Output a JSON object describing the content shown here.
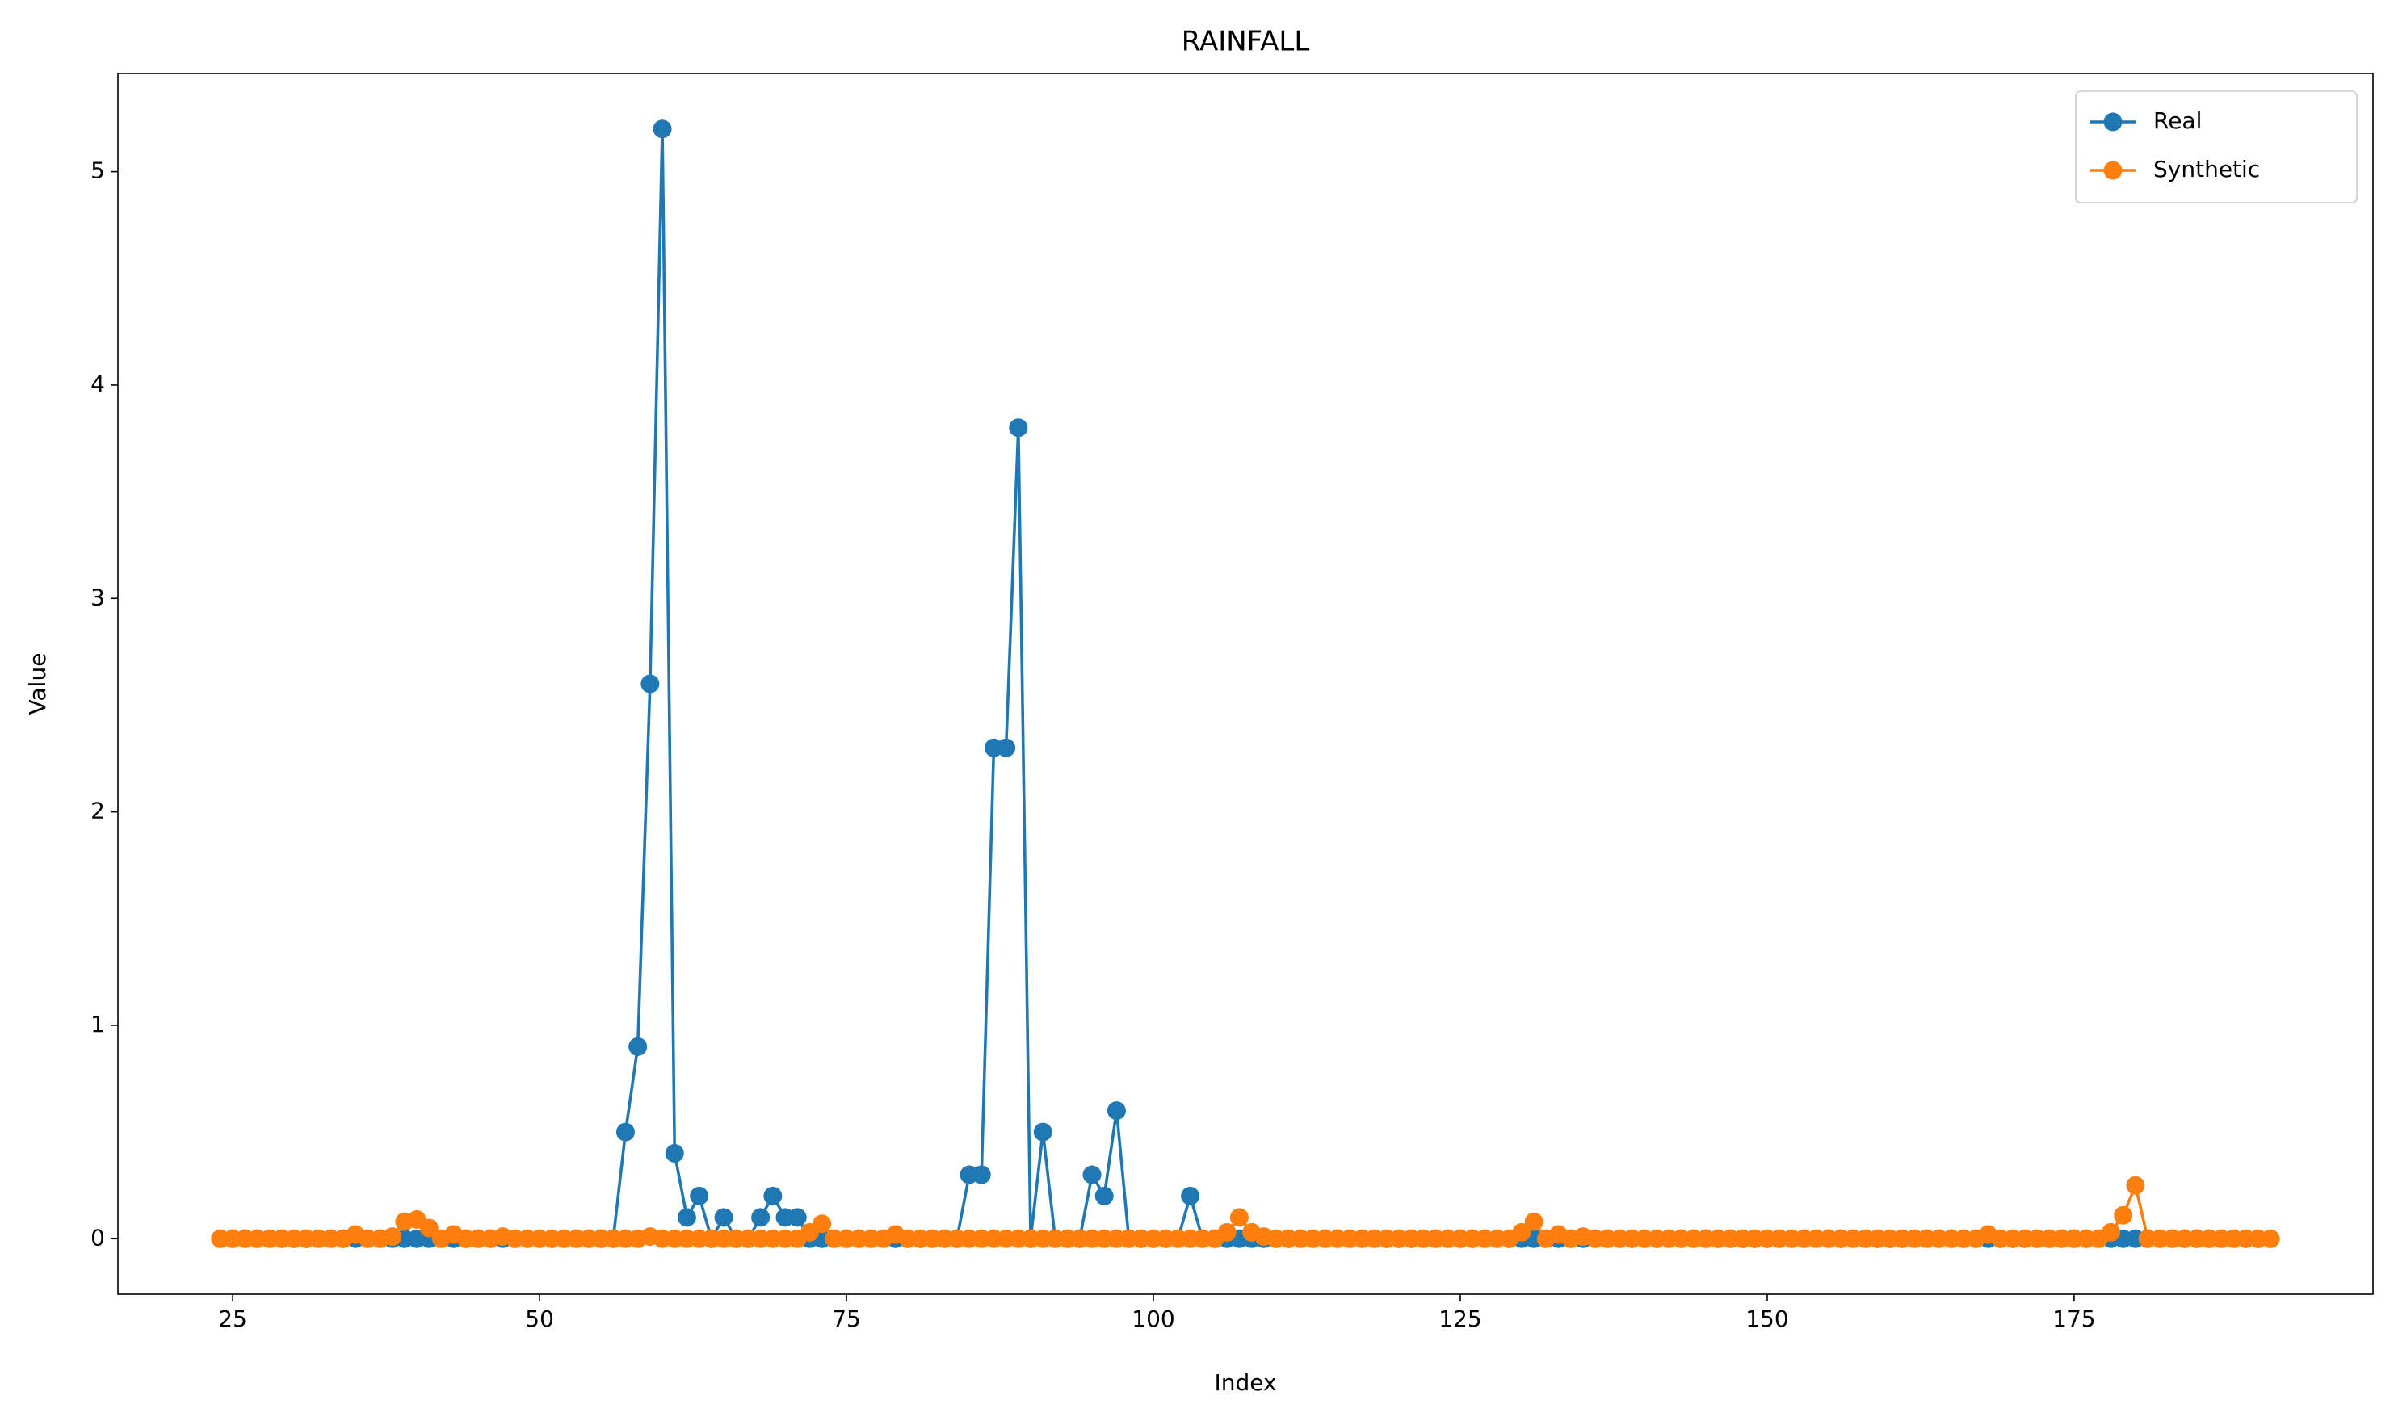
{
  "chart_data": {
    "type": "line",
    "title": "RAINFALL",
    "x_label": "Index",
    "y_label": "Value",
    "x": [
      24,
      25,
      26,
      27,
      28,
      29,
      30,
      31,
      32,
      33,
      34,
      35,
      36,
      37,
      38,
      39,
      40,
      41,
      42,
      43,
      44,
      45,
      46,
      47,
      48,
      49,
      50,
      51,
      52,
      53,
      54,
      55,
      56,
      57,
      58,
      59,
      60,
      61,
      62,
      63,
      64,
      65,
      66,
      67,
      68,
      69,
      70,
      71,
      72,
      73,
      74,
      75,
      76,
      77,
      78,
      79,
      80,
      81,
      82,
      83,
      84,
      85,
      86,
      87,
      88,
      89,
      90,
      91,
      92,
      93,
      94,
      95,
      96,
      97,
      98,
      99,
      100,
      101,
      102,
      103,
      104,
      105,
      106,
      107,
      108,
      109,
      110,
      111,
      112,
      113,
      114,
      115,
      116,
      117,
      118,
      119,
      120,
      121,
      122,
      123,
      124,
      125,
      126,
      127,
      128,
      129,
      130,
      131,
      132,
      133,
      134,
      135,
      136,
      137,
      138,
      139,
      140,
      141,
      142,
      143,
      144,
      145,
      146,
      147,
      148,
      149,
      150,
      151,
      152,
      153,
      154,
      155,
      156,
      157,
      158,
      159,
      160,
      161,
      162,
      163,
      164,
      165,
      166,
      167,
      168,
      169,
      170,
      171,
      172,
      173,
      174,
      175,
      176,
      177,
      178,
      179,
      180,
      181,
      182,
      183,
      184,
      185,
      186,
      187,
      188,
      189,
      190,
      191
    ],
    "series": [
      {
        "name": "Real",
        "color": "#1f77b4",
        "values": [
          0,
          0,
          0,
          0,
          0,
          0,
          0,
          0,
          0,
          0,
          0,
          0,
          0,
          0,
          0,
          0,
          0,
          0,
          0,
          0,
          0,
          0,
          0,
          0,
          0,
          0,
          0,
          0,
          0,
          0,
          0,
          0,
          0,
          0.5,
          0.9,
          2.6,
          5.2,
          0.4,
          0.1,
          0.2,
          0,
          0.1,
          0,
          0,
          0.1,
          0.2,
          0.1,
          0.1,
          0,
          0,
          0,
          0,
          0,
          0,
          0,
          0,
          0,
          0,
          0,
          0,
          0,
          0.3,
          0.3,
          2.3,
          2.3,
          3.8,
          0,
          0.5,
          0,
          0,
          0,
          0.3,
          0.2,
          0.6,
          0,
          0,
          0,
          0,
          0,
          0.2,
          0,
          0,
          0,
          0,
          0,
          0,
          0,
          0,
          0,
          0,
          0,
          0,
          0,
          0,
          0,
          0,
          0,
          0,
          0,
          0,
          0,
          0,
          0,
          0,
          0,
          0,
          0,
          0,
          0,
          0,
          0,
          0,
          0,
          0,
          0,
          0,
          0,
          0,
          0,
          0,
          0,
          0,
          0,
          0,
          0,
          0,
          0,
          0,
          0,
          0,
          0,
          0,
          0,
          0,
          0,
          0,
          0,
          0,
          0,
          0,
          0,
          0,
          0,
          0,
          0,
          0,
          0,
          0,
          0,
          0,
          0,
          0,
          0,
          0,
          0,
          0,
          0,
          0,
          0,
          0,
          0,
          0,
          0,
          0,
          0,
          0,
          0,
          0
        ]
      },
      {
        "name": "Synthetic",
        "color": "#ff7f0e",
        "values": [
          0,
          0,
          0,
          0,
          0,
          0,
          0,
          0,
          0,
          0,
          0,
          0.02,
          0,
          0,
          0.01,
          0.08,
          0.09,
          0.05,
          0,
          0.02,
          0,
          0,
          0,
          0.01,
          0,
          0,
          0,
          0,
          0,
          0,
          0,
          0,
          0,
          0,
          0,
          0.01,
          0,
          0,
          0,
          0,
          0,
          0,
          0,
          0,
          0,
          0,
          0,
          0,
          0.03,
          0.07,
          0,
          0,
          0,
          0,
          0,
          0.02,
          0,
          0,
          0,
          0,
          0,
          0,
          0,
          0,
          0,
          0,
          0,
          0,
          0,
          0,
          0,
          0,
          0,
          0,
          0,
          0,
          0,
          0,
          0,
          0,
          0,
          0,
          0.03,
          0.1,
          0.03,
          0.01,
          0,
          0,
          0,
          0,
          0,
          0,
          0,
          0,
          0,
          0,
          0,
          0,
          0,
          0,
          0,
          0,
          0,
          0,
          0,
          0,
          0.03,
          0.08,
          0,
          0.02,
          0,
          0.01,
          0,
          0,
          0,
          0,
          0,
          0,
          0,
          0,
          0,
          0,
          0,
          0,
          0,
          0,
          0,
          0,
          0,
          0,
          0,
          0,
          0,
          0,
          0,
          0,
          0,
          0,
          0,
          0,
          0,
          0,
          0,
          0,
          0.02,
          0,
          0,
          0,
          0,
          0,
          0,
          0,
          0,
          0,
          0.03,
          0.11,
          0.25,
          0,
          0,
          0,
          0,
          0,
          0,
          0,
          0,
          0,
          0,
          0
        ]
      }
    ],
    "xlim": [
      15.65,
      199.35
    ],
    "ylim": [
      -0.26,
      5.46
    ],
    "xticks": [
      25,
      50,
      75,
      100,
      125,
      150,
      175
    ],
    "yticks": [
      0,
      1,
      2,
      3,
      4,
      5
    ],
    "legend": "upper right"
  }
}
